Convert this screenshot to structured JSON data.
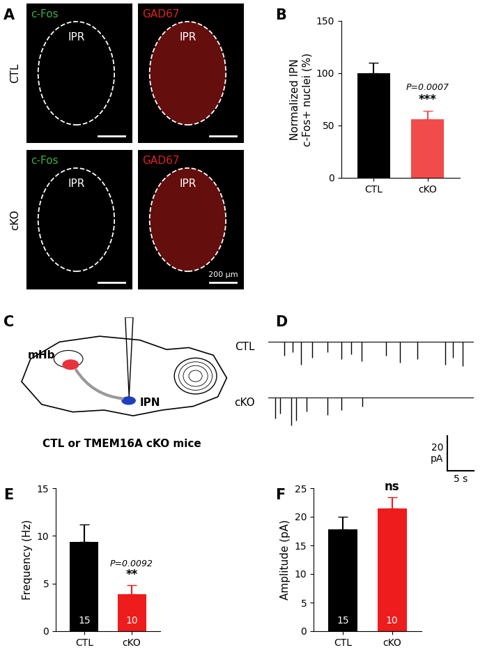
{
  "panel_labels": [
    "A",
    "B",
    "C",
    "D",
    "E",
    "F"
  ],
  "images": {
    "rows": [
      "CTL",
      "cKO"
    ],
    "channels": [
      {
        "name": "c-Fos",
        "color": "#3cb043"
      },
      {
        "name": "GAD67",
        "color": "#e0201f"
      }
    ],
    "region_label": "IPR",
    "scale_bar": "200 µm"
  },
  "diagram": {
    "regions": [
      {
        "label": "mHb",
        "color": "#e8323c"
      },
      {
        "label": "IPN",
        "color": "#1f3fbf"
      }
    ],
    "caption": "CTL or TMEM16A cKO mice"
  },
  "traces": {
    "xlim": [
      0,
      39
    ],
    "conditions": [
      {
        "name": "CTL",
        "event_times_s": [
          3.0,
          4.6,
          6.2,
          8.3,
          11.2,
          13.9,
          15.7,
          17.7,
          22.4,
          25.0,
          28.3,
          33.6,
          35.0,
          36.9
        ],
        "event_amplitudes_pA": [
          8,
          6,
          13,
          9,
          6,
          10,
          7,
          11,
          8,
          12,
          10,
          13,
          9,
          14
        ]
      },
      {
        "name": "cKO",
        "event_times_s": [
          1.3,
          2.2,
          4.4,
          5.3,
          7.3,
          11.2,
          13.9,
          17.8
        ],
        "event_amplitudes_pA": [
          12,
          9,
          16,
          13,
          8,
          10,
          7,
          5
        ]
      }
    ],
    "scale_bar": {
      "current_pA": 20,
      "current_label": "20\npA",
      "time_s": 5,
      "time_label": "5 s"
    }
  },
  "chart_data": [
    {
      "type": "bar",
      "categories": [
        "CTL",
        "cKO"
      ],
      "values": [
        100,
        56
      ],
      "errors": [
        10,
        8
      ],
      "colors": [
        "#000000",
        "#f24b4b"
      ],
      "ylabel": "Normalized IPN\nc-Fos+ nuclei (%)",
      "ylim": [
        0,
        150
      ],
      "yticks": [
        0,
        50,
        100,
        150
      ],
      "p_value": "P=0.0007",
      "significance": "***"
    },
    {
      "type": "bar",
      "categories": [
        "CTL",
        "cKO"
      ],
      "values": [
        9.4,
        3.9
      ],
      "errors": [
        1.8,
        0.9
      ],
      "colors": [
        "#000000",
        "#ee1c1c"
      ],
      "ylabel": "Frequency (Hz)",
      "ylim": [
        0,
        15
      ],
      "yticks": [
        0,
        5,
        10,
        15
      ],
      "n": [
        15,
        10
      ],
      "p_value": "P=0.0092",
      "significance": "**"
    },
    {
      "type": "bar",
      "categories": [
        "CTL",
        "cKO"
      ],
      "values": [
        17.8,
        21.5
      ],
      "errors": [
        2.2,
        1.9
      ],
      "colors": [
        "#000000",
        "#ee1c1c"
      ],
      "ylabel": "Amplitude (pA)",
      "ylim": [
        0,
        25
      ],
      "yticks": [
        0,
        5,
        10,
        15,
        20,
        25
      ],
      "n": [
        15,
        10
      ],
      "significance": "ns"
    }
  ]
}
